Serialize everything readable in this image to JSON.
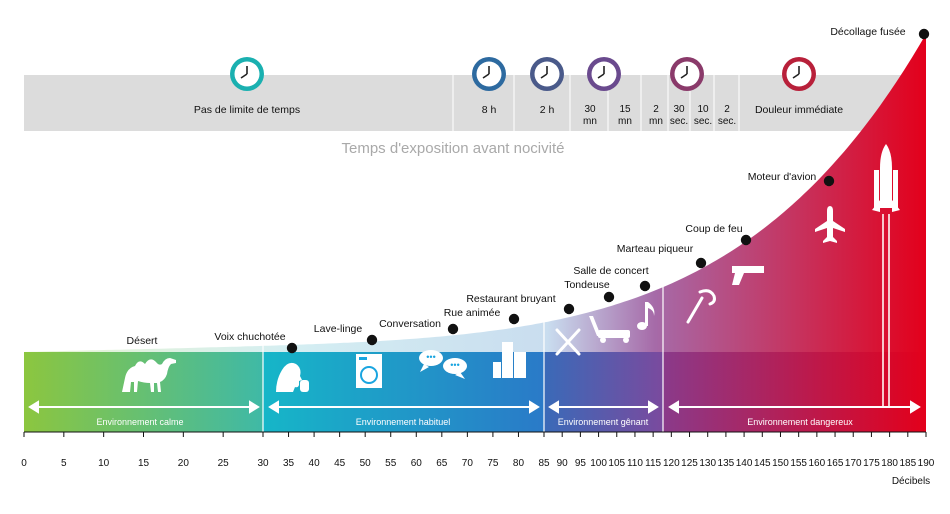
{
  "subtitle": "Temps d'exposition avant nocivité",
  "axis": {
    "unit": "Décibels",
    "ticks": [
      "0",
      "5",
      "10",
      "15",
      "20",
      "25",
      "30",
      "35",
      "40",
      "45",
      "50",
      "55",
      "60",
      "65",
      "70",
      "75",
      "80",
      "85",
      "90",
      "95",
      "100",
      "105",
      "110",
      "115",
      "120",
      "125",
      "130",
      "135",
      "140",
      "145",
      "150",
      "155",
      "160",
      "165",
      "170",
      "175",
      "180",
      "185",
      "190"
    ]
  },
  "time_band": {
    "no_limit": "Pas de limite de temps",
    "h8": "8 h",
    "h2": "2 h",
    "mn30_a": "30",
    "mn30_b": "mn",
    "mn15_a": "15",
    "mn15_b": "mn",
    "mn2_a": "2",
    "mn2_b": "mn",
    "s30_a": "30",
    "s30_b": "sec.",
    "s10_a": "10",
    "s10_b": "sec.",
    "s2_a": "2",
    "s2_b": "sec.",
    "pain": "Douleur immédiate"
  },
  "zones": {
    "calm": "Environnement calme",
    "usual": "Environnement habituel",
    "annoying": "Environnement gênant",
    "dangerous": "Environnement dangereux"
  },
  "points": [
    {
      "label": "Désert",
      "db": 20
    },
    {
      "label": "Voix chuchotée",
      "db": 30
    },
    {
      "label": "Lave-linge",
      "db": 50
    },
    {
      "label": "Conversation",
      "db": 60
    },
    {
      "label": "Rue animée",
      "db": 70
    },
    {
      "label": "Restaurant bruyant",
      "db": 80
    },
    {
      "label": "Tondeuse",
      "db": 90
    },
    {
      "label": "Salle de concert",
      "db": 100
    },
    {
      "label": "Marteau piqueur",
      "db": 110
    },
    {
      "label": "Coup de feu",
      "db": 120
    },
    {
      "label": "Moteur d'avion",
      "db": 140
    },
    {
      "label": "Décollage fusée",
      "db": 180
    }
  ],
  "colors": {
    "calm": "#8cc63f",
    "usual": "#1aa5e0",
    "annoying": "#7a4f9e",
    "dangerous": "#e3001b",
    "band": "#dcdcdc",
    "clock_teal": "#1ab0b0",
    "clock_blue": "#2d6aa0",
    "clock_slate": "#4a5a8a",
    "clock_violet": "#6a4a8e",
    "clock_plum": "#8a3a6a",
    "clock_red": "#b8203a"
  },
  "icons": [
    "clock-icon",
    "camel-icon",
    "whisper-icon",
    "washing-machine-icon",
    "speech-bubbles-icon",
    "buildings-icon",
    "cutlery-icon",
    "lawnmower-icon",
    "music-note-icon",
    "jackhammer-icon",
    "pistol-icon",
    "airplane-icon",
    "rocket-icon"
  ]
}
